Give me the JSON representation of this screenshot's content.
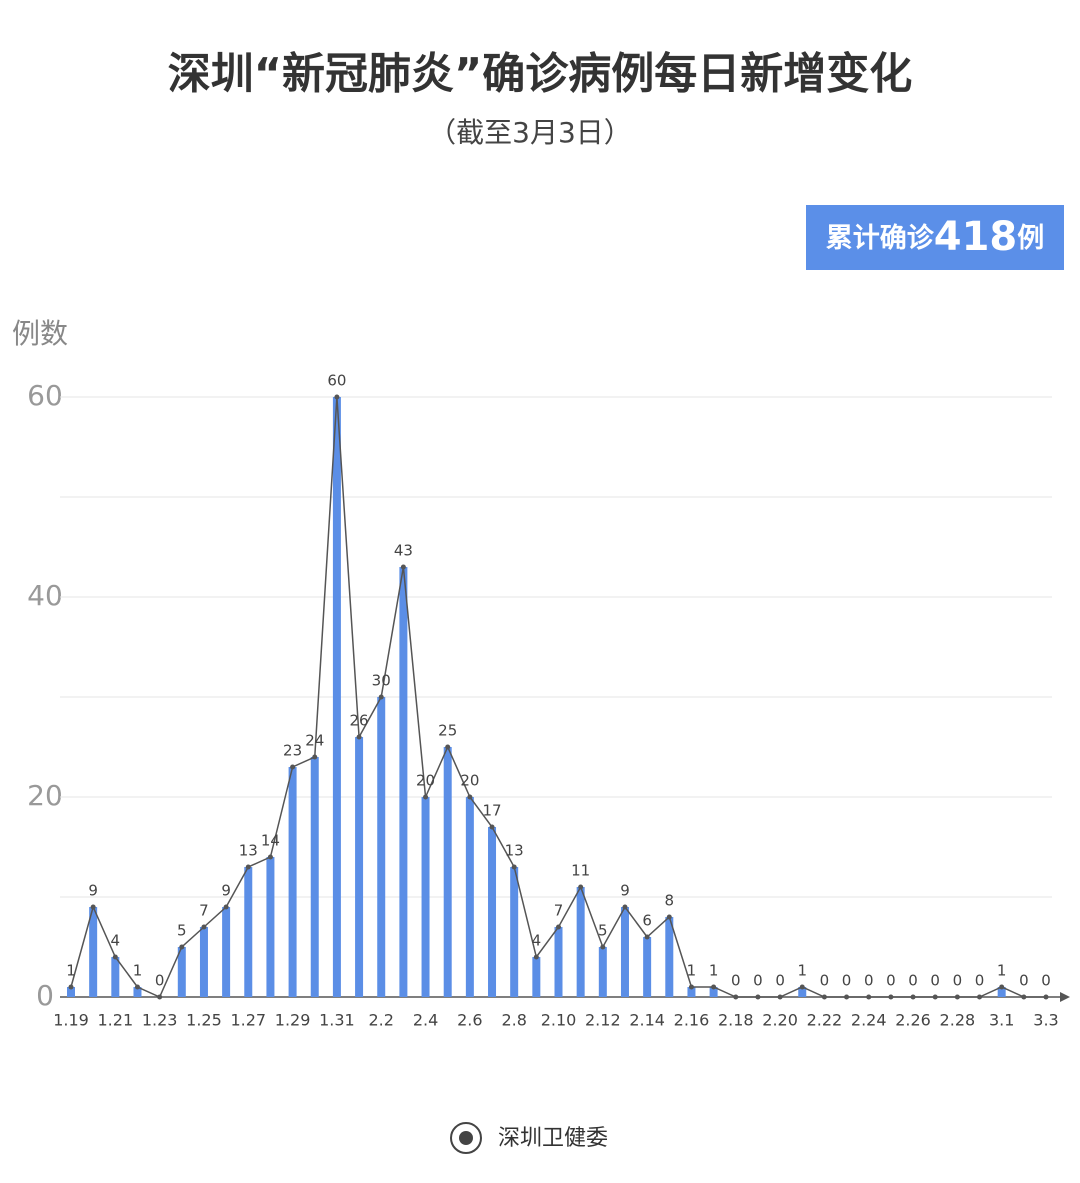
{
  "chart_data": {
    "type": "bar",
    "title": "深圳“新冠肺炎”确诊病例每日新增变化",
    "subtitle": "（截至3月3日）",
    "badge": {
      "prefix": "累计确诊",
      "value": 418,
      "suffix": "例"
    },
    "y_label": "例数",
    "source": "深圳卫健委",
    "categories": [
      "1.19",
      null,
      "1.21",
      null,
      "1.23",
      null,
      "1.25",
      null,
      "1.27",
      null,
      "1.29",
      null,
      "1.31",
      null,
      "2.2",
      null,
      "2.4",
      null,
      "2.6",
      null,
      "2.8",
      null,
      "2.10",
      null,
      "2.12",
      null,
      "2.14",
      null,
      "2.16",
      null,
      "2.18",
      null,
      "2.20",
      null,
      "2.22",
      null,
      "2.24",
      null,
      "2.26",
      null,
      "2.28",
      null,
      "3.1",
      null,
      "3.3"
    ],
    "values": [
      1,
      9,
      4,
      1,
      0,
      5,
      7,
      9,
      13,
      14,
      23,
      24,
      60,
      26,
      30,
      43,
      20,
      25,
      20,
      17,
      13,
      4,
      7,
      11,
      5,
      9,
      6,
      8,
      1,
      1,
      0,
      0,
      0,
      1,
      0,
      0,
      0,
      0,
      0,
      0,
      0,
      0,
      1,
      0,
      0
    ],
    "color": "#5b8ee6",
    "line": true,
    "line_color": "#555555",
    "ylim": [
      0,
      60
    ],
    "yticks": [
      0,
      20,
      40,
      60
    ],
    "minor_yticks": [
      10,
      30,
      50
    ],
    "grid": true
  }
}
